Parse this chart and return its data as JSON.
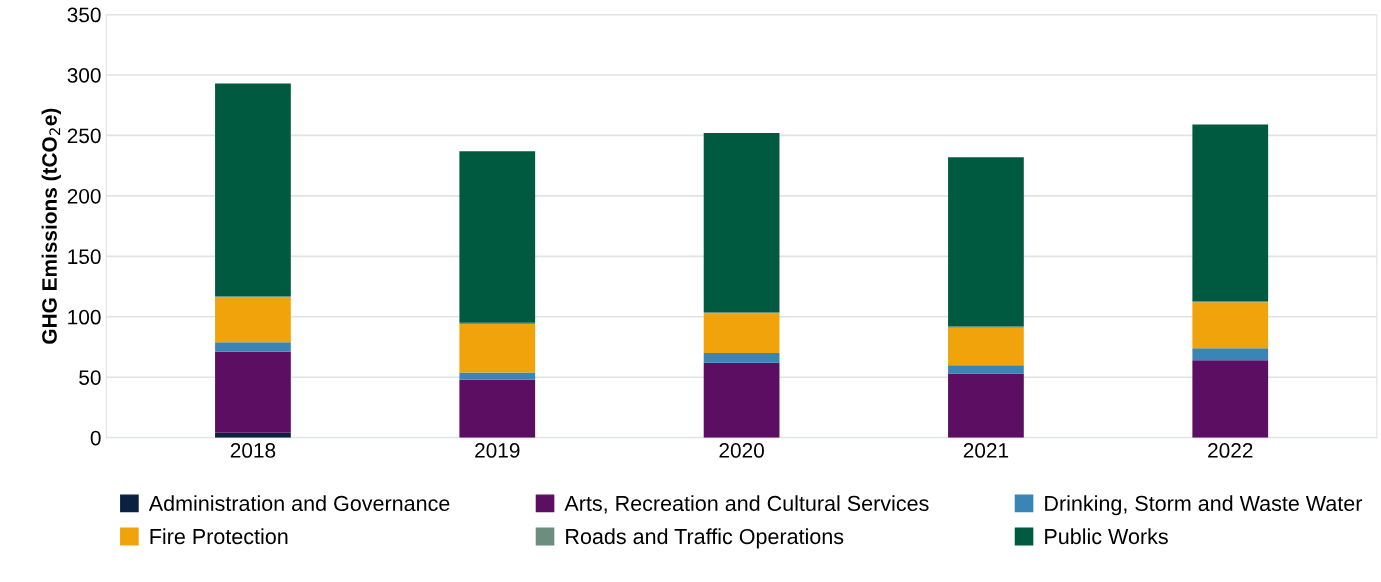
{
  "chart_data": {
    "type": "bar",
    "stacked": true,
    "ylabel": "GHG Emissions (tCO$_{2}$e)",
    "categories": [
      "2018",
      "2019",
      "2020",
      "2021",
      "2022"
    ],
    "series": [
      {
        "name": "Administration and Governance",
        "color": "#0a2240",
        "values": [
          4,
          0,
          0,
          0,
          0
        ]
      },
      {
        "name": "Arts, Recreation and Cultural Services",
        "color": "#5c0e62",
        "values": [
          67,
          48,
          62,
          53,
          64
        ]
      },
      {
        "name": "Drinking, Storm and Waste Water",
        "color": "#3a85b5",
        "values": [
          8,
          6,
          8,
          7,
          10
        ]
      },
      {
        "name": "Fire Protection",
        "color": "#f0a30a",
        "values": [
          37,
          40,
          33,
          31,
          38
        ]
      },
      {
        "name": "Roads and Traffic Operations",
        "color": "#6b8e7f",
        "values": [
          1,
          1,
          1,
          1,
          1
        ]
      },
      {
        "name": "Public Works",
        "color": "#005a40",
        "values": [
          176,
          142,
          148,
          140,
          146
        ]
      }
    ],
    "ylim": [
      0,
      350
    ],
    "yticks": [
      0,
      50,
      100,
      150,
      200,
      250,
      300,
      350
    ],
    "grid": "y",
    "legend": "bottom"
  }
}
